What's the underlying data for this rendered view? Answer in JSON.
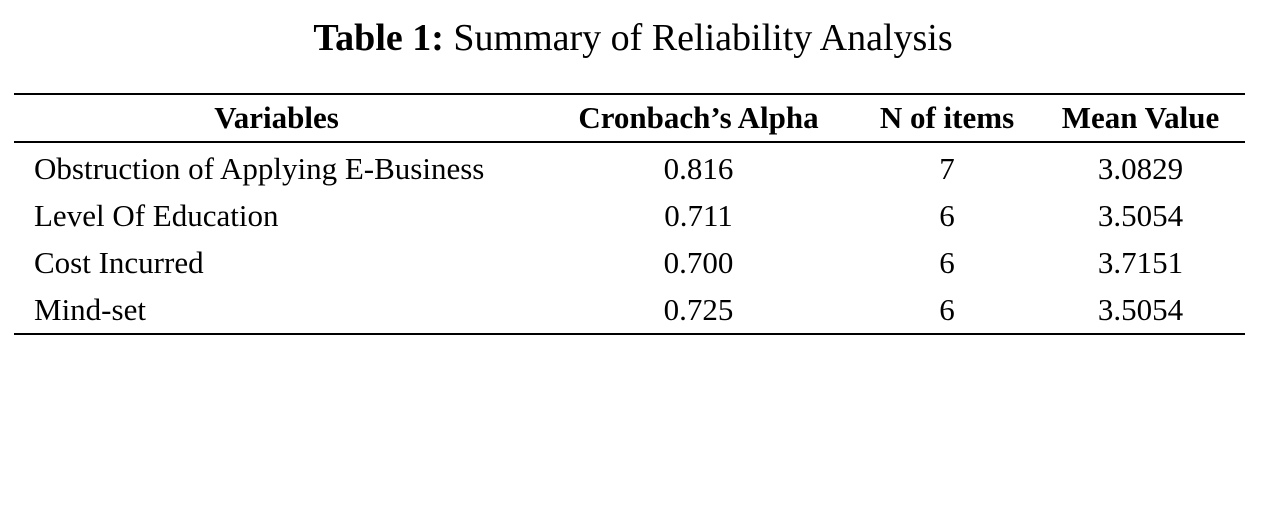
{
  "caption": {
    "label": "Table 1:",
    "text": "Summary of Reliability Analysis"
  },
  "table": {
    "headers": [
      "Variables",
      "Cronbach’s Alpha",
      "N of items",
      "Mean Value"
    ],
    "rows": [
      {
        "variable": "Obstruction of Applying E-Business",
        "alpha": "0.816",
        "items": "7",
        "mean": "3.0829"
      },
      {
        "variable": "Level Of Education",
        "alpha": "0.711",
        "items": "6",
        "mean": "3.5054"
      },
      {
        "variable": "Cost Incurred",
        "alpha": "0.700",
        "items": "6",
        "mean": "3.7151"
      },
      {
        "variable": "Mind-set",
        "alpha": "0.725",
        "items": "6",
        "mean": "3.5054"
      }
    ]
  }
}
